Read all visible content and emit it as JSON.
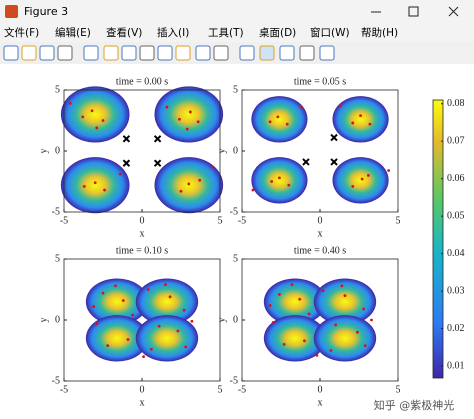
{
  "window": {
    "title": "Figure 3",
    "menu": [
      "文件(F)",
      "编辑(E)",
      "查看(V)",
      "插入(I)",
      "工具(T)",
      "桌面(D)",
      "窗口(W)",
      "帮助(H)"
    ]
  },
  "chart_data": [
    {
      "type": "scatter",
      "title": "time = 0.00 s",
      "xlabel": "x",
      "ylabel": "y",
      "xlim": [
        -5,
        5
      ],
      "ylim": [
        -5,
        5
      ],
      "xticks": [
        -5,
        0,
        5
      ],
      "yticks": [
        -5,
        0,
        5
      ],
      "blobs": {
        "x": [
          -3,
          3,
          -3,
          3
        ],
        "y": [
          3,
          3,
          -2.8,
          -2.8
        ],
        "rx": [
          2.2,
          2.2,
          2.2,
          2.2
        ],
        "ry": [
          2.3,
          2.3,
          2.3,
          2.3
        ]
      },
      "series": [
        {
          "color": "#dd1111",
          "marker": "dot",
          "x": [
            -3.2,
            -2.5,
            -3.8,
            -2.9,
            3.1,
            2.4,
            3.6,
            2.9,
            -3,
            -2.4,
            -3.7,
            3,
            2.5,
            3.7,
            -4.6,
            4.5,
            -1.4,
            1.6
          ],
          "y": [
            3.3,
            2.5,
            2.8,
            1.9,
            3.2,
            2.6,
            2.4,
            1.8,
            -2.6,
            -3.2,
            -2.9,
            -2.7,
            -3.3,
            -2.4,
            3.9,
            -1.3,
            -1.9,
            3.6
          ]
        },
        {
          "color": "#000000",
          "marker": "x",
          "x": [
            -1,
            1,
            -1,
            1
          ],
          "y": [
            1,
            1,
            -1,
            -1
          ]
        }
      ]
    },
    {
      "type": "scatter",
      "title": "time = 0.05 s",
      "xlabel": "x",
      "ylabel": "y",
      "xlim": [
        -5,
        5
      ],
      "ylim": [
        -5,
        5
      ],
      "xticks": [
        -5,
        0,
        5
      ],
      "yticks": [
        -5,
        0,
        5
      ],
      "blobs": {
        "x": [
          -2.6,
          2.6,
          -2.6,
          2.6
        ],
        "y": [
          2.6,
          2.6,
          -2.4,
          -2.4
        ],
        "rx": [
          1.8,
          1.8,
          1.8,
          1.8
        ],
        "ry": [
          1.9,
          1.9,
          1.9,
          1.9
        ]
      },
      "series": [
        {
          "color": "#dd1111",
          "marker": "dot",
          "x": [
            -2.7,
            -2.1,
            -3.2,
            2.6,
            2.1,
            3.2,
            -2.6,
            -2,
            -3.1,
            2.7,
            2.1,
            3.1,
            -4.3,
            4.4,
            -1.2,
            1.3
          ],
          "y": [
            2.8,
            2.2,
            2.4,
            2.9,
            2.3,
            2.2,
            -2.2,
            -2.8,
            -2.5,
            -2.3,
            -2.9,
            -2,
            -3.2,
            -1.6,
            3.6,
            3.7
          ]
        },
        {
          "color": "#000000",
          "marker": "x",
          "x": [
            0.9,
            -0.9,
            0.9
          ],
          "y": [
            1.1,
            -0.9,
            -0.9
          ]
        }
      ]
    },
    {
      "type": "scatter",
      "title": "time = 0.10 s",
      "xlabel": "x",
      "ylabel": "y",
      "xlim": [
        -5,
        5
      ],
      "ylim": [
        -5,
        5
      ],
      "xticks": [
        -5,
        0,
        5
      ],
      "yticks": [
        -5,
        0,
        5
      ],
      "blobs": {
        "x": [
          -1.6,
          1.6,
          -1.6,
          1.6
        ],
        "y": [
          1.5,
          1.5,
          -1.5,
          -1.5
        ],
        "rx": [
          2,
          2,
          2,
          2
        ],
        "ry": [
          1.9,
          1.9,
          1.9,
          1.9
        ]
      },
      "series": [
        {
          "color": "#dd1111",
          "marker": "dot",
          "x": [
            -2.5,
            -1.2,
            0.4,
            1.8,
            2.7,
            -2.9,
            -0.6,
            1.1,
            2.3,
            -2.2,
            -0.9,
            0.6,
            2.8,
            -1.7,
            1.5,
            -3.1,
            3.2,
            0.1
          ],
          "y": [
            2.2,
            1.6,
            2.5,
            1.9,
            0.8,
            -0.3,
            0.4,
            -0.5,
            -0.9,
            -2.1,
            -1.6,
            -2.4,
            -2.2,
            2.8,
            2.9,
            1.1,
            -0.1,
            -3
          ]
        },
        {
          "color": "#000000",
          "marker": "x",
          "x": [],
          "y": []
        }
      ]
    },
    {
      "type": "scatter",
      "title": "time = 0.40 s",
      "xlabel": "x",
      "ylabel": "y",
      "xlim": [
        -5,
        5
      ],
      "ylim": [
        -5,
        5
      ],
      "xticks": [
        -5,
        0,
        5
      ],
      "yticks": [
        -5,
        0,
        5
      ],
      "blobs": {
        "x": [
          -1.6,
          1.6,
          -1.6,
          1.6
        ],
        "y": [
          1.5,
          1.5,
          -1.5,
          -1.5
        ],
        "rx": [
          2,
          2,
          2,
          2
        ],
        "ry": [
          1.9,
          1.9,
          1.9,
          1.9
        ]
      },
      "series": [
        {
          "color": "#dd1111",
          "marker": "dot",
          "x": [
            -2.6,
            -1.3,
            0.2,
            1.6,
            2.8,
            -3,
            -0.7,
            1,
            2.4,
            -2.3,
            -1,
            0.7,
            2.9,
            -1.8,
            1.4,
            -3.2,
            3.3,
            -0.2
          ],
          "y": [
            2.1,
            1.7,
            2.4,
            2,
            0.9,
            -0.2,
            0.5,
            -0.4,
            -1,
            -2,
            -1.7,
            -2.5,
            -2.1,
            2.9,
            2.8,
            1.2,
            0,
            -2.9
          ]
        },
        {
          "color": "#000000",
          "marker": "x",
          "x": [],
          "y": []
        }
      ]
    }
  ],
  "colorbar": {
    "clim": [
      0.0068,
      0.081
    ],
    "ticks": [
      0.01,
      0.02,
      0.03,
      0.04,
      0.05,
      0.06,
      0.07,
      0.08
    ]
  },
  "watermark": "知乎 @紫极神光"
}
